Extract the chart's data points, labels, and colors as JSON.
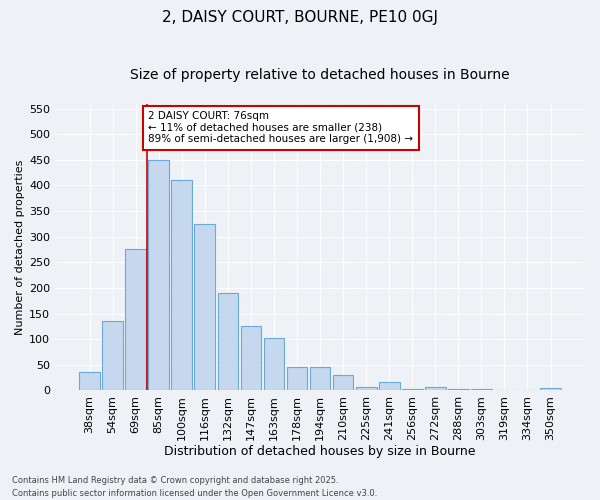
{
  "title": "2, DAISY COURT, BOURNE, PE10 0GJ",
  "subtitle": "Size of property relative to detached houses in Bourne",
  "xlabel": "Distribution of detached houses by size in Bourne",
  "ylabel": "Number of detached properties",
  "categories": [
    "38sqm",
    "54sqm",
    "69sqm",
    "85sqm",
    "100sqm",
    "116sqm",
    "132sqm",
    "147sqm",
    "163sqm",
    "178sqm",
    "194sqm",
    "210sqm",
    "225sqm",
    "241sqm",
    "256sqm",
    "272sqm",
    "288sqm",
    "303sqm",
    "319sqm",
    "334sqm",
    "350sqm"
  ],
  "values": [
    35,
    136,
    275,
    449,
    411,
    325,
    190,
    126,
    102,
    46,
    45,
    30,
    7,
    17,
    3,
    7,
    2,
    2,
    1,
    0,
    5
  ],
  "bar_color": "#c5d8ee",
  "bar_edge_color": "#6aaad4",
  "background_color": "#eef2f7",
  "grid_color": "#ffffff",
  "annotation_line1": "2 DAISY COURT: 76sqm",
  "annotation_line2": "← 11% of detached houses are smaller (238)",
  "annotation_line3": "89% of semi-detached houses are larger (1,908) →",
  "annotation_box_color": "#ffffff",
  "annotation_box_edge_color": "#cc0000",
  "vline_color": "#cc0000",
  "vline_x_index": 2.5,
  "ylim": [
    0,
    560
  ],
  "yticks": [
    0,
    50,
    100,
    150,
    200,
    250,
    300,
    350,
    400,
    450,
    500,
    550
  ],
  "footer": "Contains HM Land Registry data © Crown copyright and database right 2025.\nContains public sector information licensed under the Open Government Licence v3.0.",
  "title_fontsize": 11,
  "subtitle_fontsize": 10,
  "xlabel_fontsize": 9,
  "ylabel_fontsize": 8,
  "tick_fontsize": 8,
  "annotation_fontsize": 7.5,
  "footer_fontsize": 6
}
